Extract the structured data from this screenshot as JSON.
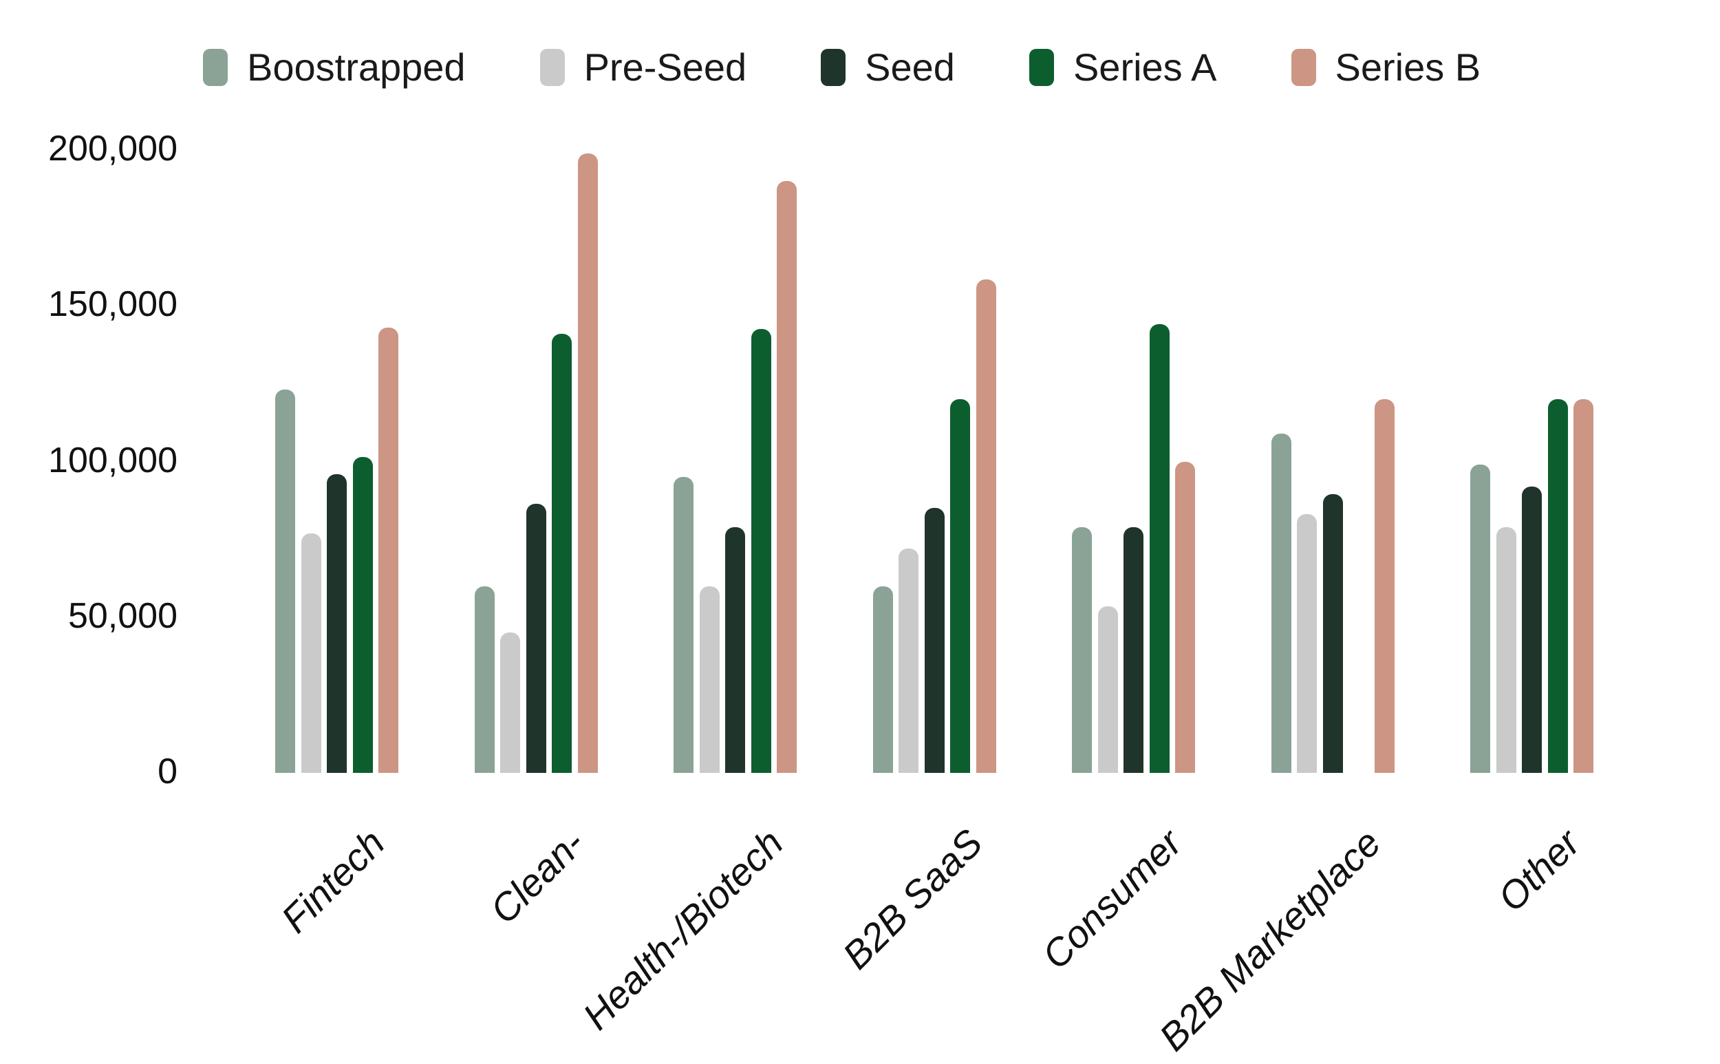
{
  "chart_data": {
    "type": "bar",
    "title": "",
    "categories": [
      "Fintech",
      "Clean-",
      "Health-/Biotech",
      "B2B SaaS",
      "Consumer",
      "B2B Marketplace",
      "Other"
    ],
    "series": [
      {
        "name": "Boostrapped",
        "color": "#8AA396",
        "values": [
          123000,
          60000,
          95000,
          60000,
          79000,
          109000,
          99000
        ]
      },
      {
        "name": "Pre-Seed",
        "color": "#C9CAC9",
        "values": [
          77000,
          45000,
          60000,
          72000,
          53500,
          83000,
          79000
        ]
      },
      {
        "name": "Seed",
        "color": "#1F342A",
        "values": [
          96000,
          86500,
          79000,
          85000,
          79000,
          89500,
          92000
        ]
      },
      {
        "name": "Series A",
        "color": "#0D5E2F",
        "values": [
          101500,
          141000,
          142500,
          120000,
          144000,
          null,
          120000
        ]
      },
      {
        "name": "Series B",
        "color": "#CC9584",
        "values": [
          143000,
          199000,
          190000,
          158500,
          100000,
          120000,
          120000
        ]
      }
    ],
    "y_ticks": [
      {
        "value": 0,
        "label": "0"
      },
      {
        "value": 50000,
        "label": "50,000"
      },
      {
        "value": 100000,
        "label": "100,000"
      },
      {
        "value": 150000,
        "label": "150,000"
      },
      {
        "value": 200000,
        "label": "200,000"
      }
    ],
    "ylim": [
      0,
      200000
    ],
    "xlabel": "",
    "ylabel": "",
    "grid": false,
    "legend_position": "top"
  }
}
